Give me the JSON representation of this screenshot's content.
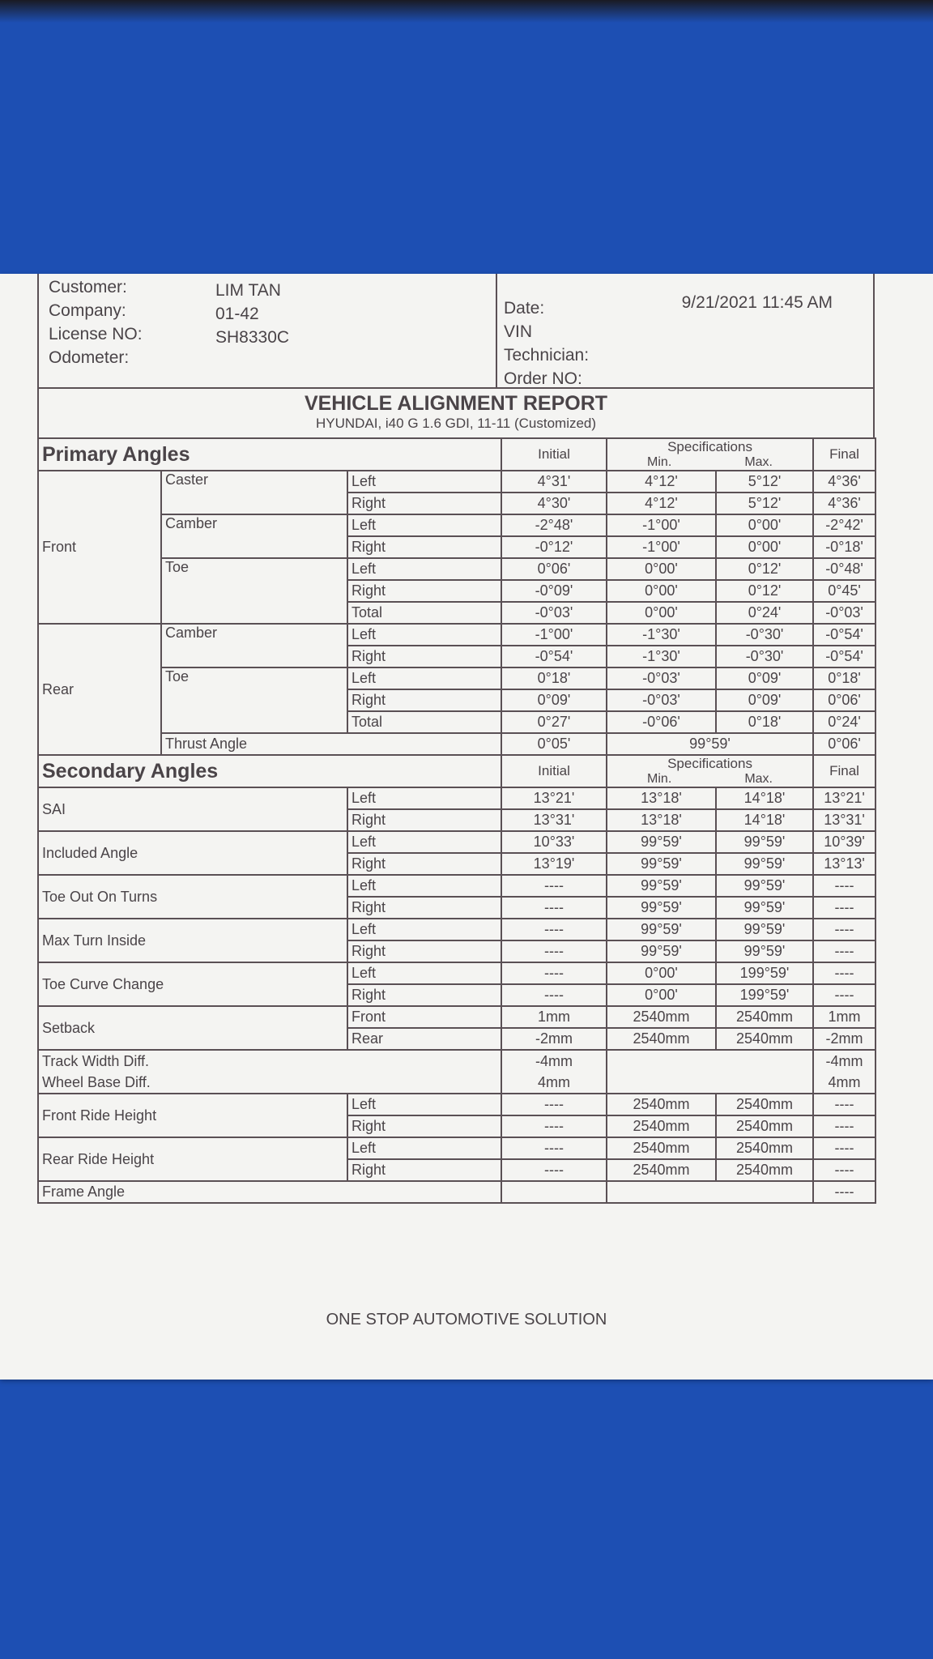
{
  "header": {
    "customer_label": "Customer:",
    "customer": "LIM TAN",
    "company_label": "Company:",
    "company": "01-42",
    "license_label": "License NO:",
    "license": "SH8330C",
    "odometer_label": "Odometer:",
    "date_label": "Date:",
    "date": "9/21/2021  11:45 AM",
    "vin_label": "VIN",
    "technician_label": "Technician:",
    "order_label": "Order NO:"
  },
  "title": "VEHICLE ALIGNMENT REPORT",
  "subtitle": "HYUNDAI, i40 G 1.6 GDI, 11-11 (Customized)",
  "primary": {
    "heading": "Primary Angles",
    "col_initial": "Initial",
    "col_spec": "Specifications",
    "col_min": "Min.",
    "col_max": "Max.",
    "col_final": "Final",
    "groups": [
      {
        "axle": "Front",
        "items": [
          {
            "name": "Caster",
            "rows": [
              {
                "side": "Left",
                "initial": "4°31'",
                "min": "4°12'",
                "max": "5°12'",
                "final": "4°36'"
              },
              {
                "side": "Right",
                "initial": "4°30'",
                "min": "4°12'",
                "max": "5°12'",
                "final": "4°36'"
              }
            ]
          },
          {
            "name": "Camber",
            "rows": [
              {
                "side": "Left",
                "initial": "-2°48'",
                "min": "-1°00'",
                "max": "0°00'",
                "final": "-2°42'"
              },
              {
                "side": "Right",
                "initial": "-0°12'",
                "min": "-1°00'",
                "max": "0°00'",
                "final": "-0°18'"
              }
            ]
          },
          {
            "name": "Toe",
            "rows": [
              {
                "side": "Left",
                "initial": "0°06'",
                "min": "0°00'",
                "max": "0°12'",
                "final": "-0°48'"
              },
              {
                "side": "Right",
                "initial": "-0°09'",
                "min": "0°00'",
                "max": "0°12'",
                "final": "0°45'"
              },
              {
                "side": "Total",
                "initial": "-0°03'",
                "min": "0°00'",
                "max": "0°24'",
                "final": "-0°03'"
              }
            ]
          }
        ]
      },
      {
        "axle": "Rear",
        "items": [
          {
            "name": "Camber",
            "rows": [
              {
                "side": "Left",
                "initial": "-1°00'",
                "min": "-1°30'",
                "max": "-0°30'",
                "final": "-0°54'"
              },
              {
                "side": "Right",
                "initial": "-0°54'",
                "min": "-1°30'",
                "max": "-0°30'",
                "final": "-0°54'"
              }
            ]
          },
          {
            "name": "Toe",
            "rows": [
              {
                "side": "Left",
                "initial": "0°18'",
                "min": "-0°03'",
                "max": "0°09'",
                "final": "0°18'"
              },
              {
                "side": "Right",
                "initial": "0°09'",
                "min": "-0°03'",
                "max": "0°09'",
                "final": "0°06'"
              },
              {
                "side": "Total",
                "initial": "0°27'",
                "min": "-0°06'",
                "max": "0°18'",
                "final": "0°24'"
              }
            ]
          }
        ]
      }
    ],
    "thrust": {
      "label": "Thrust Angle",
      "initial": "0°05'",
      "spec": "99°59'",
      "final": "0°06'"
    }
  },
  "secondary": {
    "heading": "Secondary Angles",
    "col_initial": "Initial",
    "col_spec": "Specifications",
    "col_min": "Min.",
    "col_max": "Max.",
    "col_final": "Final",
    "items": [
      {
        "name": "SAI",
        "rows": [
          {
            "side": "Left",
            "initial": "13°21'",
            "min": "13°18'",
            "max": "14°18'",
            "final": "13°21'"
          },
          {
            "side": "Right",
            "initial": "13°31'",
            "min": "13°18'",
            "max": "14°18'",
            "final": "13°31'"
          }
        ]
      },
      {
        "name": "Included Angle",
        "rows": [
          {
            "side": "Left",
            "initial": "10°33'",
            "min": "99°59'",
            "max": "99°59'",
            "final": "10°39'"
          },
          {
            "side": "Right",
            "initial": "13°19'",
            "min": "99°59'",
            "max": "99°59'",
            "final": "13°13'"
          }
        ]
      },
      {
        "name": "Toe Out On Turns",
        "rows": [
          {
            "side": "Left",
            "initial": "----",
            "min": "99°59'",
            "max": "99°59'",
            "final": "----"
          },
          {
            "side": "Right",
            "initial": "----",
            "min": "99°59'",
            "max": "99°59'",
            "final": "----"
          }
        ]
      },
      {
        "name": "Max Turn Inside",
        "rows": [
          {
            "side": "Left",
            "initial": "----",
            "min": "99°59'",
            "max": "99°59'",
            "final": "----"
          },
          {
            "side": "Right",
            "initial": "----",
            "min": "99°59'",
            "max": "99°59'",
            "final": "----"
          }
        ]
      },
      {
        "name": "Toe Curve Change",
        "rows": [
          {
            "side": "Left",
            "initial": "----",
            "min": "0°00'",
            "max": "199°59'",
            "final": "----"
          },
          {
            "side": "Right",
            "initial": "----",
            "min": "0°00'",
            "max": "199°59'",
            "final": "----"
          }
        ]
      },
      {
        "name": "Setback",
        "rows": [
          {
            "side": "Front",
            "initial": "1mm",
            "min": "2540mm",
            "max": "2540mm",
            "final": "1mm"
          },
          {
            "side": "Rear",
            "initial": "-2mm",
            "min": "2540mm",
            "max": "2540mm",
            "final": "-2mm"
          }
        ]
      }
    ],
    "diffs": [
      {
        "name": "Track Width Diff.",
        "initial": "-4mm",
        "final": "-4mm"
      },
      {
        "name": "Wheel Base Diff.",
        "initial": "4mm",
        "final": "4mm"
      }
    ],
    "ride": [
      {
        "name": "Front Ride Height",
        "rows": [
          {
            "side": "Left",
            "initial": "----",
            "min": "2540mm",
            "max": "2540mm",
            "final": "----"
          },
          {
            "side": "Right",
            "initial": "----",
            "min": "2540mm",
            "max": "2540mm",
            "final": "----"
          }
        ]
      },
      {
        "name": "Rear Ride Height",
        "rows": [
          {
            "side": "Left",
            "initial": "----",
            "min": "2540mm",
            "max": "2540mm",
            "final": "----"
          },
          {
            "side": "Right",
            "initial": "----",
            "min": "2540mm",
            "max": "2540mm",
            "final": "----"
          }
        ]
      }
    ],
    "frame": {
      "name": "Frame Angle",
      "final": "----"
    }
  },
  "footer": "ONE STOP AUTOMOTIVE SOLUTION",
  "colors": {
    "background": "#1d4fb3",
    "paper": "#f4f4f2",
    "ink": "#4a4448"
  }
}
